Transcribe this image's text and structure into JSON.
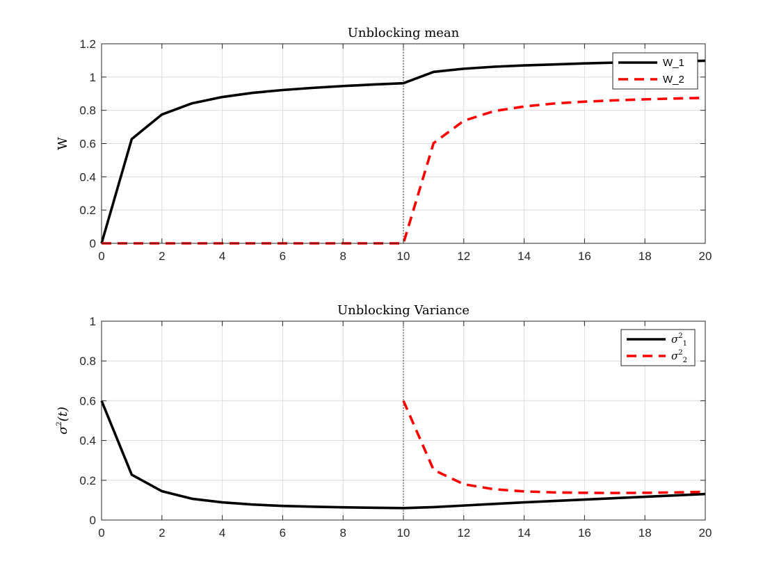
{
  "chart_data": [
    {
      "type": "line",
      "title": "Unblocking mean",
      "xlabel": "",
      "ylabel": "W",
      "xlim": [
        0,
        20
      ],
      "ylim": [
        0,
        1.2
      ],
      "xticks": [
        "0",
        "2",
        "4",
        "6",
        "8",
        "10",
        "12",
        "14",
        "16",
        "18",
        "20"
      ],
      "yticks": [
        "0",
        "0.2",
        "0.4",
        "0.6",
        "0.8",
        "1",
        "1.2"
      ],
      "grid": true,
      "legend_position": "top-right",
      "vline_x": 10,
      "series": [
        {
          "name": "W_1",
          "color": "#000000",
          "style": "solid",
          "x": [
            0,
            1,
            2,
            3,
            4,
            5,
            6,
            7,
            8,
            9,
            10,
            11,
            12,
            13,
            14,
            15,
            16,
            17,
            18,
            19,
            20
          ],
          "y": [
            0,
            0.627,
            0.775,
            0.842,
            0.88,
            0.905,
            0.922,
            0.935,
            0.946,
            0.955,
            0.963,
            1.031,
            1.05,
            1.062,
            1.07,
            1.076,
            1.082,
            1.087,
            1.091,
            1.095,
            1.098
          ]
        },
        {
          "name": "W_2",
          "color": "#ff0000",
          "style": "dashed",
          "x": [
            0,
            1,
            2,
            3,
            4,
            5,
            6,
            7,
            8,
            9,
            10,
            11,
            12,
            13,
            14,
            15,
            16,
            17,
            18,
            19,
            20
          ],
          "y": [
            0,
            0,
            0,
            0,
            0,
            0,
            0,
            0,
            0,
            0,
            0,
            0.603,
            0.737,
            0.795,
            0.823,
            0.841,
            0.852,
            0.86,
            0.866,
            0.871,
            0.875
          ]
        }
      ]
    },
    {
      "type": "line",
      "title": "Unblocking Variance",
      "xlabel": "",
      "ylabel_parts": {
        "base": "σ",
        "sup": "2",
        "rest": "(t)"
      },
      "xlim": [
        0,
        20
      ],
      "ylim": [
        0,
        1
      ],
      "xticks": [
        "0",
        "2",
        "4",
        "6",
        "8",
        "10",
        "12",
        "14",
        "16",
        "18",
        "20"
      ],
      "yticks": [
        "0",
        "0.2",
        "0.4",
        "0.6",
        "0.8",
        "1"
      ],
      "grid": true,
      "legend_position": "top-right",
      "vline_x": 10,
      "series": [
        {
          "name_parts": {
            "base": "σ",
            "sup": "2",
            "sub": "1"
          },
          "color": "#000000",
          "style": "solid",
          "x": [
            0,
            1,
            2,
            3,
            4,
            5,
            6,
            7,
            8,
            9,
            10,
            11,
            12,
            13,
            14,
            15,
            16,
            17,
            18,
            19,
            20
          ],
          "y": [
            0.6,
            0.228,
            0.145,
            0.107,
            0.089,
            0.078,
            0.071,
            0.067,
            0.064,
            0.062,
            0.06,
            0.065,
            0.073,
            0.081,
            0.089,
            0.096,
            0.103,
            0.11,
            0.117,
            0.124,
            0.131
          ]
        },
        {
          "name_parts": {
            "base": "σ",
            "sup": "2",
            "sub": "2"
          },
          "color": "#ff0000",
          "style": "dashed",
          "x": [
            10,
            11,
            12,
            13,
            14,
            15,
            16,
            17,
            18,
            19,
            20
          ],
          "y": [
            0.6,
            0.252,
            0.18,
            0.155,
            0.144,
            0.139,
            0.137,
            0.136,
            0.137,
            0.139,
            0.142
          ]
        }
      ]
    }
  ]
}
